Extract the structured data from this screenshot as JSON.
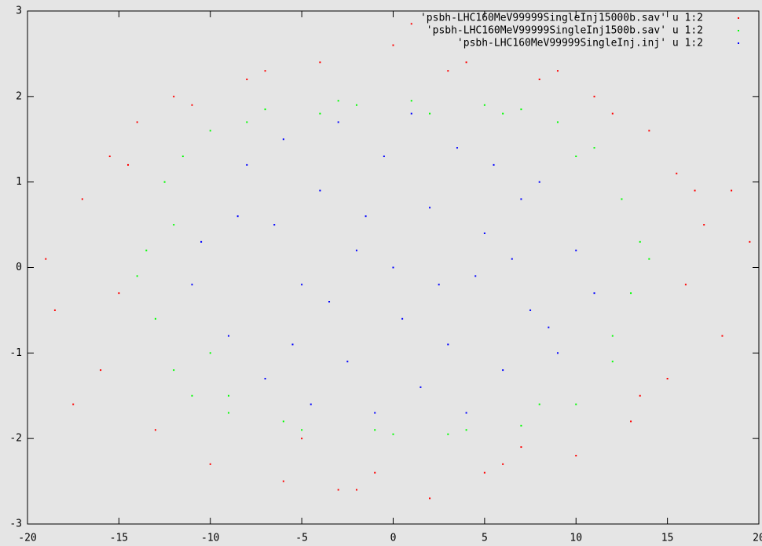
{
  "chart_data": {
    "type": "scatter",
    "series": [
      {
        "name": "'psbh-LHC160MeV99999SingleInj15000b.sav' u 1:2",
        "color": "#ff0000",
        "x": [
          -19,
          -18.5,
          -17,
          -16,
          -15.5,
          -15,
          -14,
          -13,
          -12,
          -10,
          -8,
          -6,
          -4,
          -2,
          0,
          2,
          4,
          6,
          8,
          10,
          12,
          13,
          14,
          15,
          15.5,
          16,
          17,
          18,
          19.5,
          -17.5,
          -11,
          -5,
          -1,
          3,
          7,
          11,
          16.5,
          9,
          -3,
          1,
          5,
          -7,
          13.5,
          -14.5,
          18.5
        ],
        "y": [
          0.1,
          -0.5,
          0.8,
          -1.2,
          1.3,
          -0.3,
          1.7,
          -1.9,
          2.0,
          -2.3,
          2.2,
          -2.5,
          2.4,
          -2.6,
          2.6,
          -2.7,
          2.4,
          -2.3,
          2.2,
          -2.2,
          1.8,
          -1.8,
          1.6,
          -1.3,
          1.1,
          -0.2,
          0.5,
          -0.8,
          0.3,
          -1.6,
          1.9,
          -2.0,
          -2.4,
          2.3,
          -2.1,
          2.0,
          0.9,
          2.3,
          -2.6,
          2.85,
          -2.4,
          2.3,
          -1.5,
          1.2,
          0.9
        ]
      },
      {
        "name": "'psbh-LHC160MeV99999SingleInj1500b.sav' u 1:2",
        "color": "#00ff00",
        "x": [
          -13.5,
          -13,
          -12.5,
          -12,
          -11.5,
          -11,
          -10,
          -9,
          -7,
          -5,
          -3,
          -1,
          1,
          3,
          5,
          7,
          9,
          10,
          11,
          12,
          12.5,
          13,
          13.5,
          -12,
          -10,
          -6,
          -2,
          2,
          6,
          10,
          12,
          -8,
          4,
          0,
          -4,
          8,
          14,
          -14,
          7,
          -9
        ],
        "y": [
          0.2,
          -0.6,
          1.0,
          -1.2,
          1.3,
          -1.5,
          1.6,
          -1.7,
          1.85,
          -1.9,
          1.95,
          -1.9,
          1.95,
          -1.95,
          1.9,
          -1.85,
          1.7,
          -1.6,
          1.4,
          -1.1,
          0.8,
          -0.3,
          0.3,
          0.5,
          -1.0,
          -1.8,
          1.9,
          1.8,
          1.8,
          1.3,
          -0.8,
          1.7,
          -1.9,
          -1.95,
          1.8,
          -1.6,
          0.1,
          -0.1,
          1.85,
          -1.5
        ]
      },
      {
        "name": "'psbh-LHC160MeV99999SingleInj.inj' u 1:2",
        "color": "#0000ff",
        "x": [
          -10.5,
          -9,
          -8,
          -7,
          -6.5,
          -6,
          -5,
          -4.5,
          -4,
          -3,
          -2.5,
          -2,
          -1,
          -0.5,
          0,
          0.5,
          1,
          1.5,
          2,
          3,
          3.5,
          4,
          5,
          5.5,
          6,
          7,
          7.5,
          8,
          9,
          10,
          11,
          -11,
          -8.5,
          -3.5,
          2.5,
          6.5,
          -1.5,
          4.5,
          8.5,
          -5.5
        ],
        "y": [
          0.3,
          -0.8,
          1.2,
          -1.3,
          0.5,
          1.5,
          -0.2,
          -1.6,
          0.9,
          1.7,
          -1.1,
          0.2,
          -1.7,
          1.3,
          0.0,
          -0.6,
          1.8,
          -1.4,
          0.7,
          -0.9,
          1.4,
          -1.7,
          0.4,
          1.2,
          -1.2,
          0.8,
          -0.5,
          1.0,
          -1.0,
          0.2,
          -0.3,
          -0.2,
          0.6,
          -0.4,
          -0.2,
          0.1,
          0.6,
          -0.1,
          -0.7,
          -0.9
        ]
      }
    ],
    "xlim": [
      -20,
      20
    ],
    "xticks": [
      -20,
      -15,
      -10,
      -5,
      0,
      5,
      10,
      15,
      20
    ],
    "ylim": [
      -3,
      3
    ],
    "yticks": [
      -3,
      -2,
      -1,
      0,
      1,
      2,
      3
    ],
    "legend": "top-right"
  }
}
